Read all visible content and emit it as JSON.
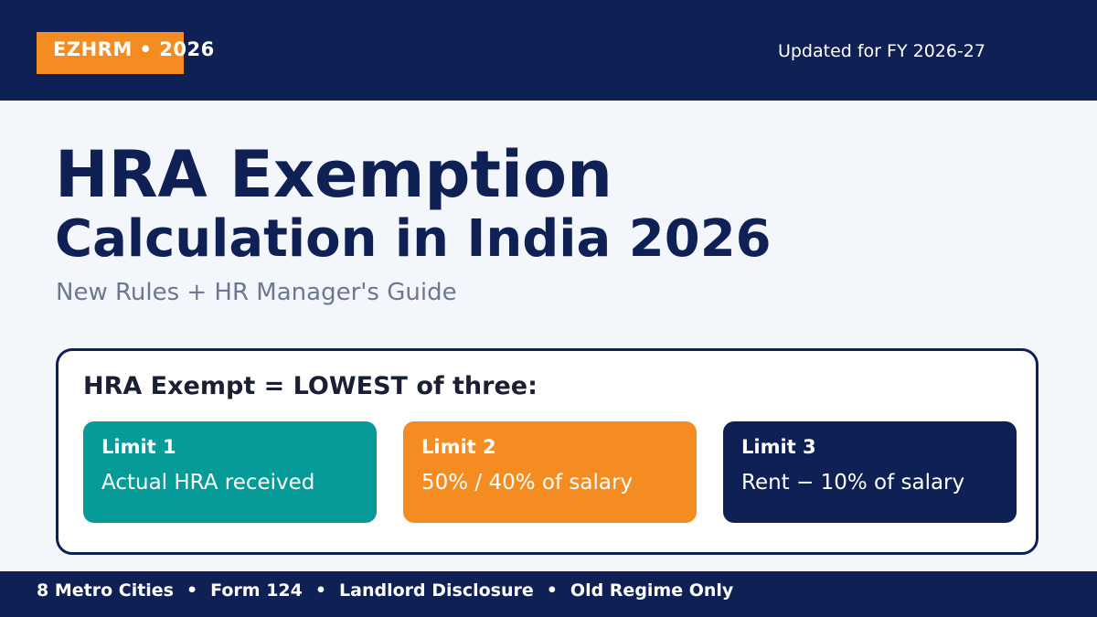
{
  "header": {
    "brand": "EZHRM • 2026",
    "updated": "Updated for FY 2026-27"
  },
  "hero": {
    "title_line1": "HRA Exemption",
    "title_line2": "Calculation in India 2026",
    "subtitle": "New Rules + HR Manager's Guide"
  },
  "formula": {
    "heading": "HRA Exempt = LOWEST of three:",
    "limits": [
      {
        "title": "Limit 1",
        "description": "Actual HRA received",
        "color": "#069b98"
      },
      {
        "title": "Limit 2",
        "description": "50% / 40% of salary",
        "color": "#f58c22"
      },
      {
        "title": "Limit 3",
        "description": "Rent − 10% of salary",
        "color": "#0f2054"
      }
    ]
  },
  "footer": {
    "items": [
      "8 Metro Cities",
      "Form 124",
      "Landlord Disclosure",
      "Old Regime Only"
    ],
    "separator": "•"
  },
  "colors": {
    "navy": "#0f2054",
    "orange": "#f58c22",
    "teal": "#069b98",
    "background": "#f3f6fb"
  }
}
